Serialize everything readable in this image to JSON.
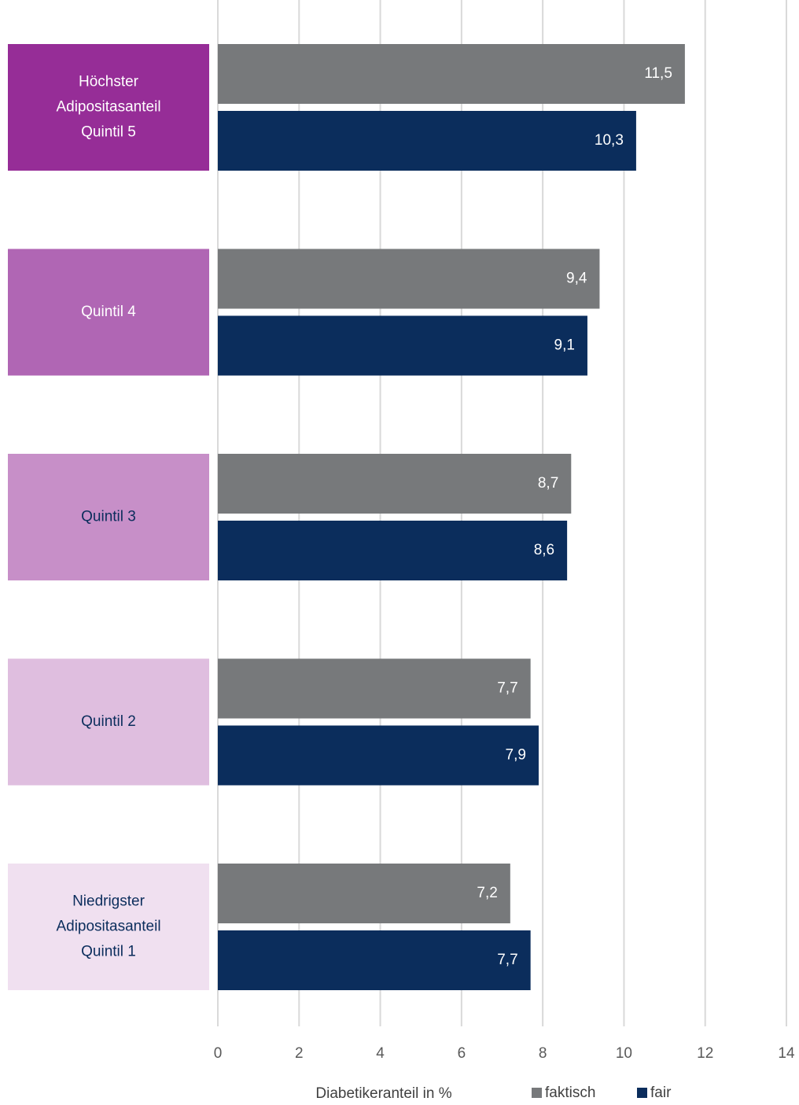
{
  "chart_data": {
    "type": "bar",
    "orientation": "horizontal",
    "categories": [
      [
        "Höchster",
        "Adipositasanteil",
        "Quintil 5"
      ],
      [
        "Quintil 4"
      ],
      [
        "Quintil 3"
      ],
      [
        "Quintil 2"
      ],
      [
        "Niedrigster",
        "Adipositasanteil",
        "Quintil 1"
      ]
    ],
    "category_colors": [
      "#962d97",
      "#b066b4",
      "#c78fc8",
      "#dfbedf",
      "#f0e0f0"
    ],
    "category_label_colors": [
      "#ffffff",
      "#ffffff",
      "#0b2d5c",
      "#0b2d5c",
      "#0b2d5c"
    ],
    "series": [
      {
        "name": "faktisch",
        "color": "#77797b",
        "values": [
          11.5,
          9.4,
          8.7,
          7.7,
          7.2
        ],
        "value_labels": [
          "11,5",
          "9,4",
          "8,7",
          "7,7",
          "7,2"
        ]
      },
      {
        "name": "fair",
        "color": "#0b2d5c",
        "values": [
          10.3,
          9.1,
          8.6,
          7.9,
          7.7
        ],
        "value_labels": [
          "10,3",
          "9,1",
          "8,6",
          "7,9",
          "7,7"
        ]
      }
    ],
    "xlabel": "Diabetikeranteil in %",
    "xlim": [
      0,
      14
    ],
    "xticks": [
      0,
      2,
      4,
      6,
      8,
      10,
      12,
      14
    ],
    "grid": true,
    "legend": "bottom"
  }
}
